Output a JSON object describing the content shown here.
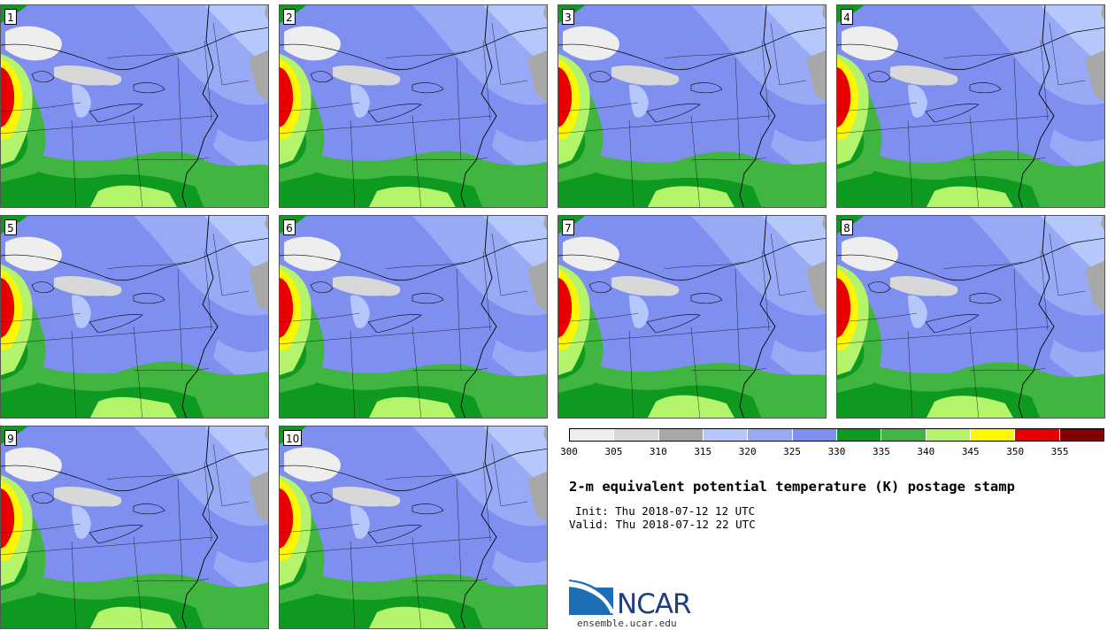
{
  "panels": [
    {
      "label": "1"
    },
    {
      "label": "2"
    },
    {
      "label": "3"
    },
    {
      "label": "4"
    },
    {
      "label": "5"
    },
    {
      "label": "6"
    },
    {
      "label": "7"
    },
    {
      "label": "8"
    },
    {
      "label": "9"
    },
    {
      "label": "10"
    }
  ],
  "colorbar": {
    "colors": [
      "#eeeeee",
      "#d8d8d8",
      "#a8a8a8",
      "#b6c8fb",
      "#98aaf6",
      "#7f8ff0",
      "#0e9a20",
      "#40b640",
      "#b3f46a",
      "#fff700",
      "#e80000",
      "#820000"
    ],
    "ticks": [
      "300",
      "305",
      "310",
      "315",
      "320",
      "325",
      "330",
      "335",
      "340",
      "345",
      "350",
      "355"
    ]
  },
  "title": "2-m equivalent potential temperature (K) postage stamp",
  "init": "Init: Thu 2018-07-12 12 UTC",
  "valid": "Valid: Thu 2018-07-12 22 UTC",
  "logo_text": "NCAR",
  "site": "ensemble.ucar.edu"
}
